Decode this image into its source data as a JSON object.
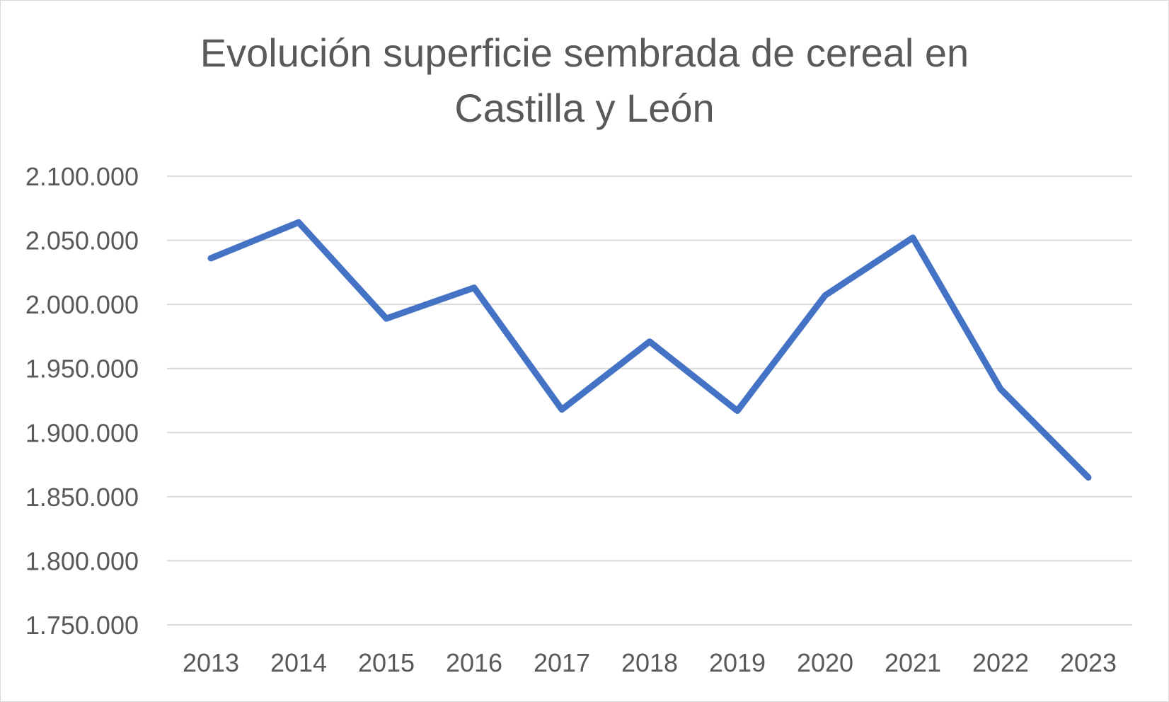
{
  "chart_data": {
    "type": "line",
    "title_lines": [
      "Evolución superficie sembrada de cereal en",
      "Castilla y León"
    ],
    "xlabel": "",
    "ylabel": "",
    "categories": [
      "2013",
      "2014",
      "2015",
      "2016",
      "2017",
      "2018",
      "2019",
      "2020",
      "2021",
      "2022",
      "2023"
    ],
    "series": [
      {
        "values": [
          2036000,
          2064000,
          1989000,
          2013000,
          1918000,
          1971000,
          1917000,
          2007000,
          2052000,
          1934000,
          1865000
        ],
        "color": "#4472c4"
      }
    ],
    "ylim": [
      1750000,
      2100000
    ],
    "yticks": [
      1750000,
      1800000,
      1850000,
      1900000,
      1950000,
      2000000,
      2050000,
      2100000
    ],
    "ytick_labels": [
      "1.750.000",
      "1.800.000",
      "1.850.000",
      "1.900.000",
      "1.950.000",
      "2.000.000",
      "2.050.000",
      "2.100.000"
    ],
    "grid": true,
    "legend": "none",
    "gridline_color": "#d9d9d9"
  }
}
